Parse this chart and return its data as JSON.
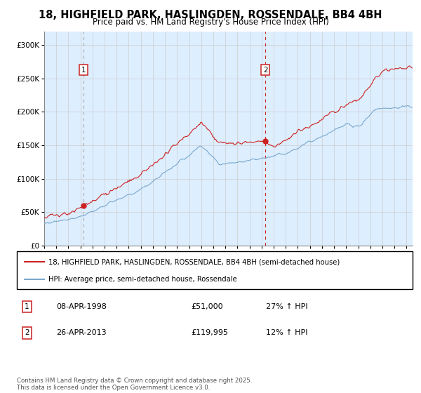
{
  "title_line1": "18, HIGHFIELD PARK, HASLINGDEN, ROSSENDALE, BB4 4BH",
  "title_line2": "Price paid vs. HM Land Registry's House Price Index (HPI)",
  "ylim": [
    0,
    320000
  ],
  "yticks": [
    0,
    50000,
    100000,
    150000,
    200000,
    250000,
    300000
  ],
  "xlim_start": 1995.0,
  "xlim_end": 2025.5,
  "sale1_date": 1998.27,
  "sale1_price": 51000,
  "sale2_date": 2013.32,
  "sale2_price": 119995,
  "line_color_red": "#cc2222",
  "line_color_blue": "#7aa8cc",
  "vline1_color": "#aaaaaa",
  "vline2_color": "#cc2222",
  "grid_color": "#cccccc",
  "chart_bg": "#ddeeff",
  "bg_color": "#ffffff",
  "legend_label_red": "18, HIGHFIELD PARK, HASLINGDEN, ROSSENDALE, BB4 4BH (semi-detached house)",
  "legend_label_blue": "HPI: Average price, semi-detached house, Rossendale",
  "copyright_text": "Contains HM Land Registry data © Crown copyright and database right 2025.\nThis data is licensed under the Open Government Licence v3.0."
}
